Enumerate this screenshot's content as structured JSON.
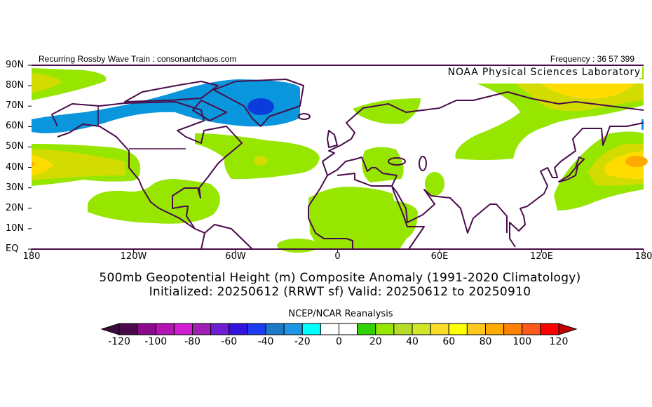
{
  "header": {
    "left": "Recurring Rossby Wave Train : consonantchaos.com",
    "right": "Frequency : 36 57 399"
  },
  "map": {
    "credit": "NOAA Physical Sciences Laboratory",
    "lat_labels": [
      "90N",
      "80N",
      "70N",
      "60N",
      "50N",
      "40N",
      "30N",
      "20N",
      "10N",
      "EQ"
    ],
    "lon_labels": [
      "180",
      "120W",
      "60W",
      "0",
      "60E",
      "120E",
      "180"
    ],
    "projection": "cylindrical equidistant, 0-90N",
    "coastline_color": "#4a0c4a"
  },
  "titles": {
    "line1": "500mb Geopotential Height (m) Composite Anomaly (1991-2020 Climatology)",
    "line2": "Initialized: 20250612 (RRWT sf) Valid: 20250612 to 20250910"
  },
  "colorbar": {
    "title": "NCEP/NCAR Reanalysis",
    "labels": [
      "-120",
      "-100",
      "-80",
      "-60",
      "-40",
      "-20",
      "0",
      "20",
      "40",
      "60",
      "80",
      "100",
      "120"
    ],
    "under_color": "#3c0a3c",
    "over_color": "#c00000",
    "colors": [
      "#4a0a4a",
      "#8c0a8c",
      "#b414b4",
      "#d21ed2",
      "#a01eb4",
      "#6e1ed2",
      "#3214dc",
      "#1e3cf0",
      "#1e78c8",
      "#1e96e6",
      "#00ffff",
      "#ffffff",
      "#ffffff",
      "#32d200",
      "#96e600",
      "#b4dc28",
      "#d2e628",
      "#fadc28",
      "#ffff00",
      "#ffc81e",
      "#ffaa00",
      "#ff8200",
      "#ff5a1e",
      "#ff0000"
    ]
  }
}
